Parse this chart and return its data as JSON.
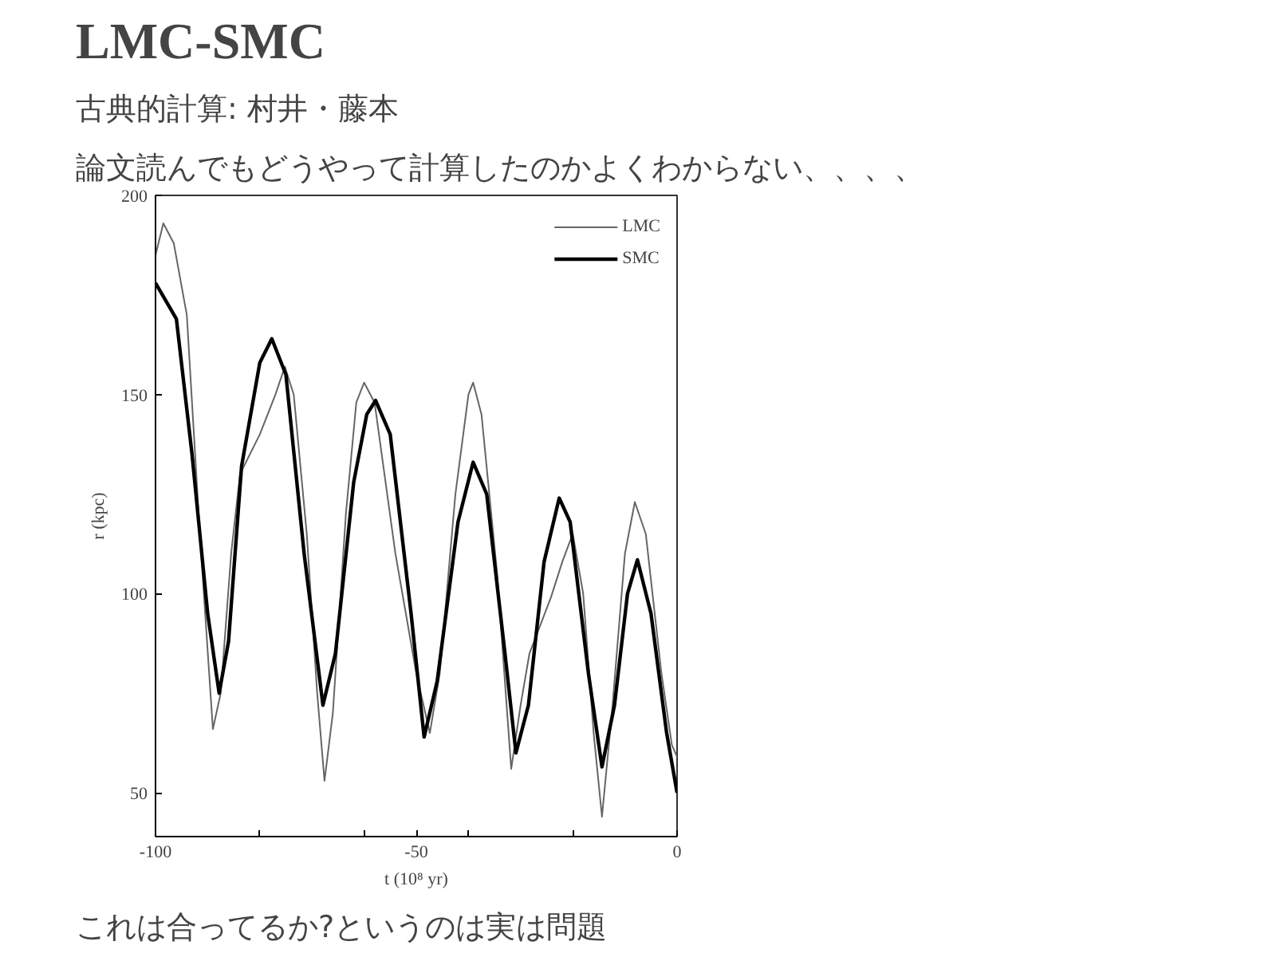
{
  "chart_data": {
    "type": "line",
    "title": "LMC-SMC",
    "subtitle": "古典的計算: 村井・藤本",
    "annotations": [
      "論文読んでもどうやって計算したのかよくわからない、、、、",
      "これは合ってるか?というのは実は問題"
    ],
    "xlabel": "t (10⁸ yr)",
    "ylabel": "r (kpc)",
    "xlim": [
      -100,
      0
    ],
    "ylim": [
      39,
      200
    ],
    "xticks": [
      -100,
      {
        "value": -80,
        "label": null
      },
      {
        "value": -60,
        "label": null
      },
      -50,
      {
        "value": -40,
        "label": null
      },
      {
        "value": -20,
        "label": null
      },
      0
    ],
    "yticks": [
      50,
      100,
      150,
      200
    ],
    "grid": false,
    "legend": "top right",
    "series": [
      {
        "name": "LMC",
        "color": "#666666",
        "x": [
          -100,
          -98.5,
          -96.5,
          -94,
          -91.5,
          -89,
          -87.5,
          -85.5,
          -83.8,
          -80,
          -77,
          -75.2,
          -73.5,
          -71,
          -69,
          -67.6,
          -66,
          -63.5,
          -61.5,
          -60,
          -58,
          -54,
          -50,
          -47.4,
          -45.5,
          -42.5,
          -40,
          -39.1,
          -37.5,
          -34.5,
          -31.8,
          -30,
          -28.3,
          -24.2,
          -22,
          -20,
          -18,
          -16,
          -14.4,
          -12.5,
          -10,
          -8.1,
          -6,
          -3,
          -1,
          0
        ],
        "values": [
          185,
          193,
          188,
          170,
          115,
          66,
          75,
          110,
          130,
          140,
          150,
          157,
          150,
          115,
          75,
          53,
          70,
          120,
          148,
          153,
          148,
          110,
          80,
          65,
          80,
          125,
          150,
          153,
          145,
          105,
          56,
          72,
          85,
          99,
          108,
          115,
          100,
          65,
          44,
          70,
          110,
          123,
          115,
          80,
          62,
          59
        ]
      },
      {
        "name": "SMC",
        "color": "#000000",
        "x": [
          -100,
          -96,
          -93,
          -90,
          -87.8,
          -86,
          -83.5,
          -80,
          -77.7,
          -75,
          -71.5,
          -67.9,
          -65.5,
          -62,
          -59.5,
          -57.8,
          -55,
          -51,
          -48.5,
          -46,
          -42,
          -39.1,
          -36.5,
          -33,
          -30.9,
          -28.5,
          -25.5,
          -22.6,
          -20.5,
          -17,
          -14.4,
          -12,
          -9.5,
          -7.6,
          -5,
          -2,
          0
        ],
        "values": [
          178,
          169,
          135,
          95,
          75,
          88,
          132,
          158,
          164,
          155,
          110,
          72,
          85,
          128,
          145,
          148.5,
          140,
          95,
          64,
          78,
          118,
          133,
          125,
          85,
          60,
          72,
          108,
          124,
          118,
          80,
          56.5,
          72,
          100,
          108.5,
          95,
          65,
          50
        ]
      }
    ]
  }
}
